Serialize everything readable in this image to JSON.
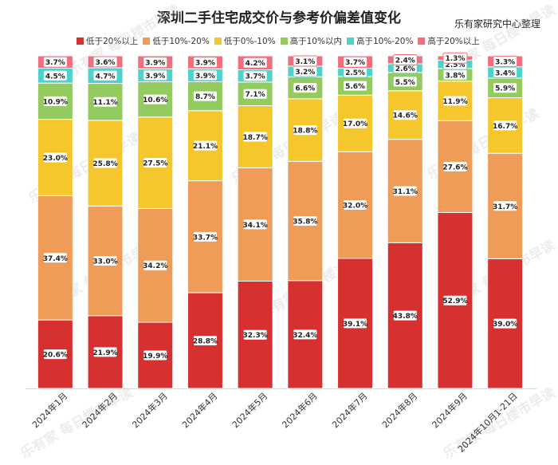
{
  "chart_data": {
    "type": "bar",
    "stacked": true,
    "title": "深圳二手住宅成交价与参考价偏差值变化",
    "source": "乐有家研究中心整理",
    "watermark": "乐有家 每日楼市早读",
    "categories": [
      "2024年1月",
      "2024年2月",
      "2024年3月",
      "2024年4月",
      "2024年5月",
      "2024年6月",
      "2024年7月",
      "2024年8月",
      "2024年9月",
      "2024年10月1-21日"
    ],
    "series": [
      {
        "name": "低于20%以上",
        "color": "#d63030",
        "values": [
          20.6,
          21.9,
          19.9,
          28.8,
          32.3,
          32.4,
          39.1,
          43.8,
          52.9,
          39.0
        ]
      },
      {
        "name": "低于10%-20%",
        "color": "#ef9c59",
        "values": [
          37.4,
          33.0,
          34.2,
          33.7,
          34.1,
          35.8,
          32.0,
          31.1,
          27.6,
          31.7
        ]
      },
      {
        "name": "低于0%-10%",
        "color": "#f5c72d",
        "values": [
          23.0,
          25.8,
          27.5,
          21.1,
          18.7,
          18.8,
          17.0,
          14.6,
          11.9,
          16.7
        ]
      },
      {
        "name": "高于10%以内",
        "color": "#93cb5f",
        "values": [
          10.9,
          11.1,
          10.6,
          8.7,
          7.1,
          6.6,
          5.6,
          5.5,
          3.8,
          5.9
        ]
      },
      {
        "name": "高于10%-20%",
        "color": "#4fd2cb",
        "values": [
          4.5,
          4.7,
          3.9,
          3.9,
          3.7,
          3.2,
          2.5,
          2.6,
          2.5,
          3.4
        ]
      },
      {
        "name": "高于20%以上",
        "color": "#ef6f7c",
        "values": [
          3.7,
          3.6,
          3.9,
          3.9,
          4.2,
          3.1,
          3.7,
          2.4,
          1.3,
          3.3
        ]
      }
    ],
    "value_format": "%",
    "ylim": [
      0,
      100
    ]
  }
}
